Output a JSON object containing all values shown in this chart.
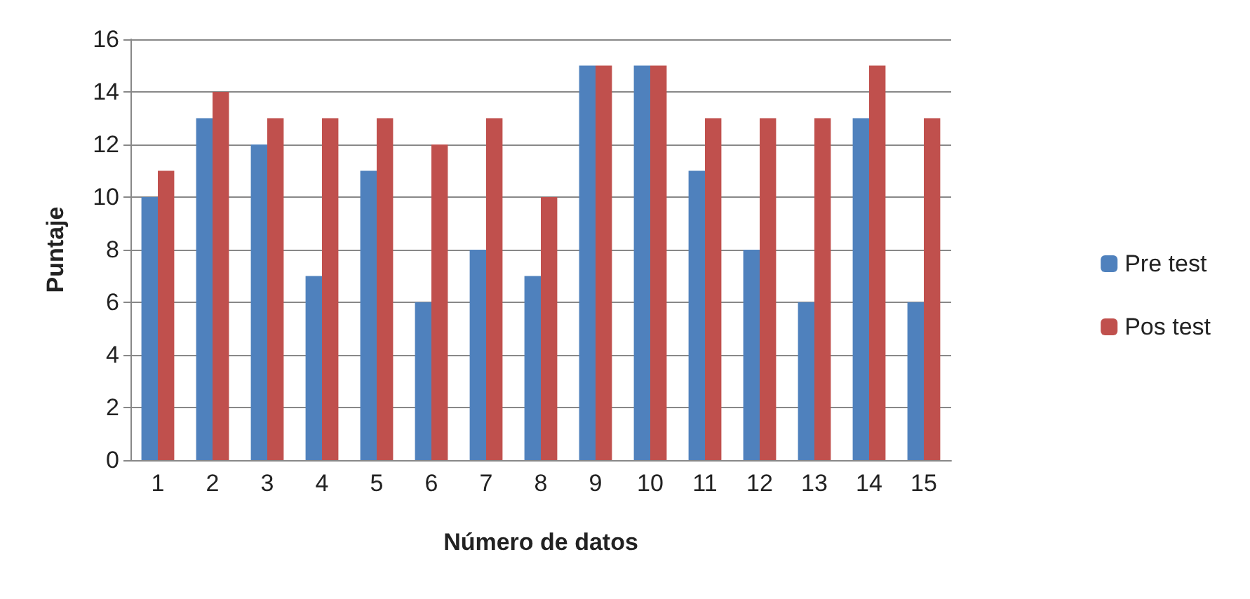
{
  "chart_data": {
    "type": "bar",
    "xlabel": "Número de datos",
    "ylabel": "Puntaje",
    "categories": [
      "1",
      "2",
      "3",
      "4",
      "5",
      "6",
      "7",
      "8",
      "9",
      "10",
      "11",
      "12",
      "13",
      "14",
      "15"
    ],
    "series": [
      {
        "name": "Pre test",
        "color": "#4f81bd",
        "values": [
          10,
          13,
          12,
          7,
          11,
          6,
          8,
          7,
          15,
          15,
          11,
          8,
          6,
          13,
          6
        ]
      },
      {
        "name": "Pos test",
        "color": "#c0504d",
        "values": [
          11,
          14,
          13,
          13,
          13,
          12,
          13,
          10,
          15,
          15,
          13,
          13,
          13,
          15,
          13
        ]
      }
    ],
    "ylim": [
      0,
      16
    ],
    "yticks": [
      0,
      2,
      4,
      6,
      8,
      10,
      12,
      14,
      16
    ],
    "grid": "y",
    "legend": "right"
  }
}
